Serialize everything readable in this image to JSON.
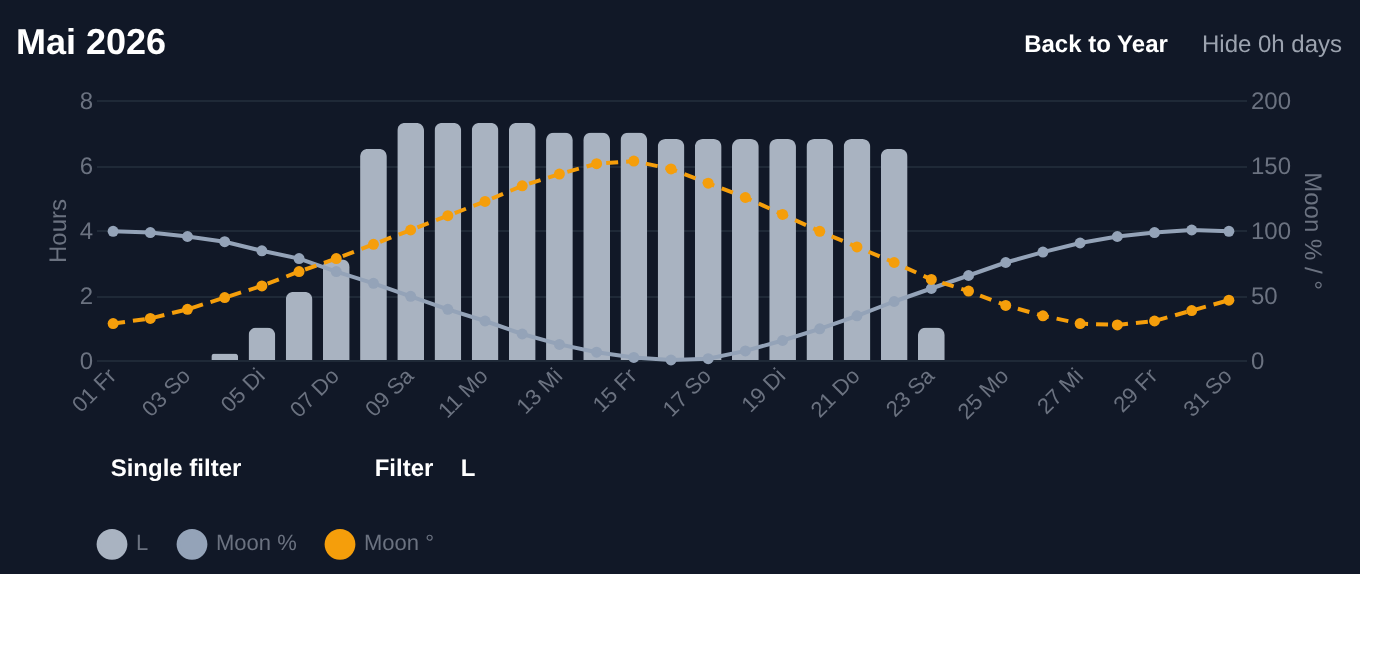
{
  "chart_data": {
    "type": "bar",
    "title": "Mai 2026",
    "categories": [
      "01 Fr",
      null,
      "03 So",
      null,
      "05 Di",
      null,
      "07 Do",
      null,
      "09 Sa",
      null,
      "11 Mo",
      null,
      "13 Mi",
      null,
      "15 Fr",
      null,
      "17 So",
      null,
      "19 Di",
      null,
      "21 Do",
      null,
      "23 Sa",
      null,
      "25 Mo",
      null,
      "27 Mi",
      null,
      "29 Fr",
      null,
      "31 So"
    ],
    "series": [
      {
        "name": "L",
        "color": "#a9b3c1",
        "values": [
          0,
          0,
          0,
          0.2,
          1.0,
          2.1,
          3.1,
          6.5,
          7.3,
          7.3,
          7.3,
          7.3,
          7.0,
          7.0,
          7.0,
          6.8,
          6.8,
          6.8,
          6.8,
          6.8,
          6.8,
          6.5,
          1.0,
          0,
          0,
          0,
          0,
          0,
          0,
          0,
          0
        ]
      },
      {
        "name": "Moon %",
        "type": "line",
        "axis": "y2",
        "line_style": "solid",
        "color": "#94a3b8",
        "values": [
          99,
          98,
          95,
          91,
          84,
          78,
          68,
          59,
          49,
          39,
          30,
          20,
          12,
          6,
          2,
          0,
          1,
          7,
          15,
          24,
          34,
          45,
          55,
          65,
          75,
          83,
          90,
          95,
          98,
          100,
          99
        ]
      },
      {
        "name": "Moon °",
        "type": "line",
        "axis": "y2",
        "line_style": "dashed",
        "color": "#f59e0b",
        "values": [
          28,
          32,
          39,
          48,
          57,
          68,
          78,
          89,
          100,
          111,
          122,
          134,
          143,
          151,
          153,
          147,
          136,
          125,
          112,
          99,
          87,
          75,
          62,
          53,
          42,
          34,
          28,
          27,
          30,
          38,
          46
        ]
      }
    ],
    "ylabel": "Hours",
    "y2label": "Moon % / °",
    "ylim": [
      0,
      8
    ],
    "yticks": [
      0,
      2,
      4,
      6,
      8
    ],
    "y2lim": [
      0,
      200
    ],
    "y2ticks": [
      0,
      50,
      100,
      150,
      200
    ],
    "grid": "y",
    "legend": "bottom",
    "marker": "circle",
    "annotations": [
      "Back to Year",
      "Hide 0h days",
      "Single filter",
      "Filter",
      "L"
    ]
  }
}
